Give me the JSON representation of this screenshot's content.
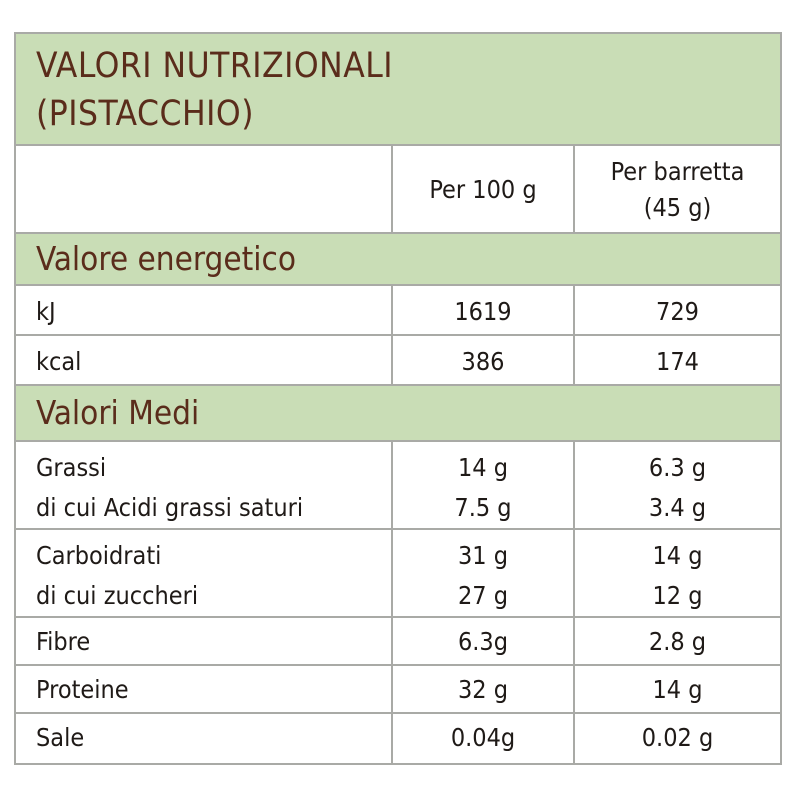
{
  "title": {
    "line1": "VALORI NUTRIZIONALI",
    "line2": "(PISTACCHIO)"
  },
  "header": {
    "col_per100": "Per 100 g",
    "col_bar_line1": "Per barretta",
    "col_bar_line2": "(45 g)"
  },
  "sections": {
    "energy": "Valore energetico",
    "averages": "Valori Medi"
  },
  "rows": {
    "kj": {
      "label": "kJ",
      "per100": "1619",
      "bar": "729"
    },
    "kcal": {
      "label": "kcal",
      "per100": "386",
      "bar": "174"
    },
    "fats": {
      "label": "Grassi",
      "sub_label": "di cui Acidi grassi saturi",
      "per100": "14 g",
      "per100_sub": "7.5 g",
      "bar": "6.3 g",
      "bar_sub": "3.4 g"
    },
    "carbs": {
      "label": "Carboidrati",
      "sub_label": "di cui zuccheri",
      "per100": "31 g",
      "per100_sub": "27 g",
      "bar": "14 g",
      "bar_sub": "12 g"
    },
    "fibre": {
      "label": "Fibre",
      "per100": "6.3g",
      "bar": "2.8 g"
    },
    "protein": {
      "label": "Proteine",
      "per100": "32 g",
      "bar": "14 g"
    },
    "salt": {
      "label": "Sale",
      "per100": "0.04g",
      "bar": "0.02 g"
    }
  },
  "colors": {
    "band": "#c9ddb6",
    "title_text": "#5a2c1b",
    "border": "#a9aaa6"
  }
}
